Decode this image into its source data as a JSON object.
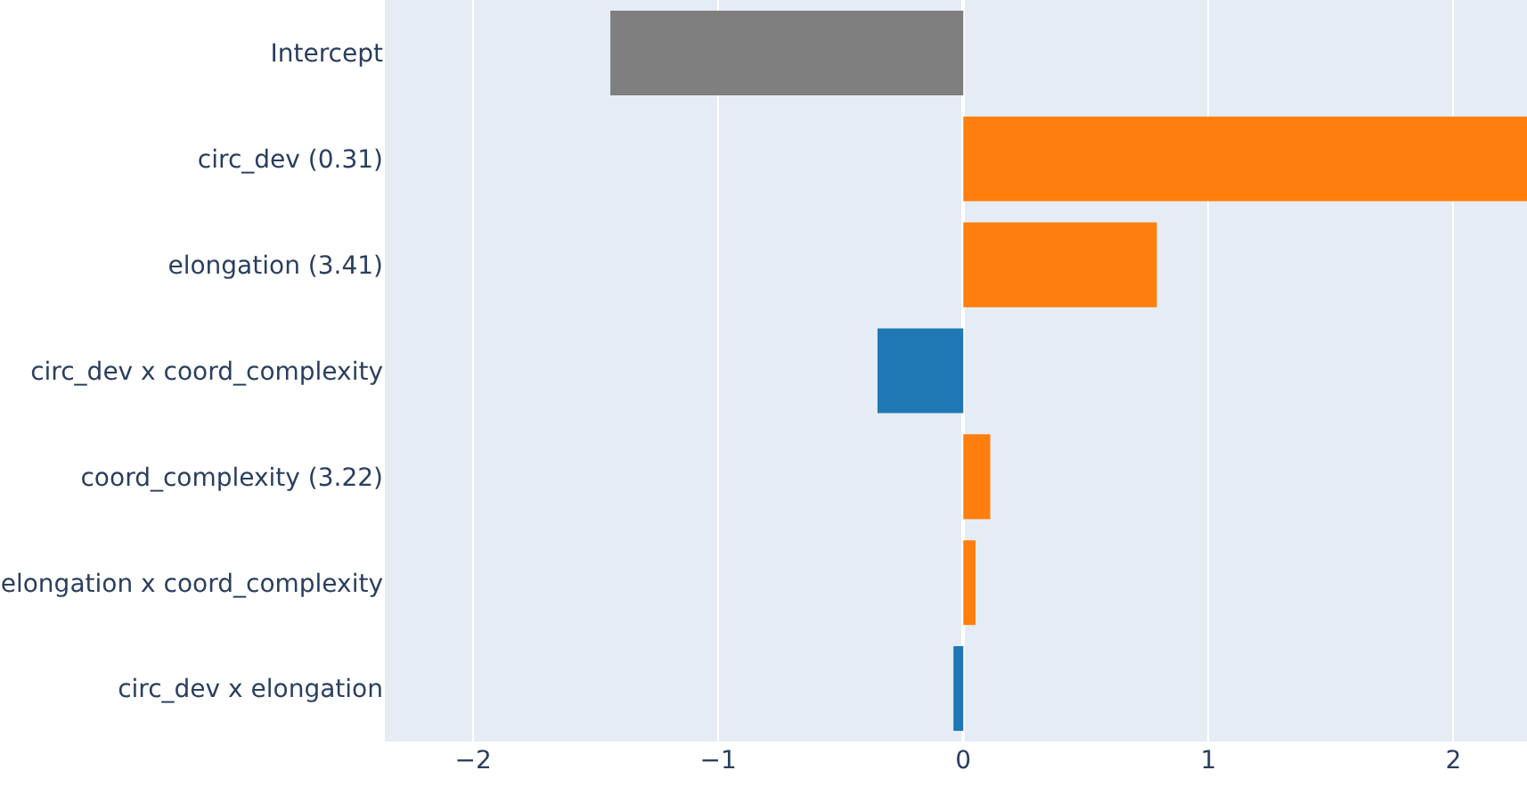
{
  "chart_data": {
    "type": "bar",
    "orientation": "horizontal",
    "categories": [
      "Intercept",
      "circ_dev (0.31)",
      "elongation (3.41)",
      "circ_dev x coord_complexity",
      "coord_complexity (3.22)",
      "elongation x coord_complexity",
      "circ_dev x elongation"
    ],
    "values": [
      -1.44,
      2.3,
      0.79,
      -0.35,
      0.11,
      0.05,
      -0.04
    ],
    "colors": [
      "#7f7f7f",
      "#ff7f0e",
      "#ff7f0e",
      "#1f77b4",
      "#ff7f0e",
      "#ff7f0e",
      "#1f77b4"
    ],
    "xlim": [
      -2.36,
      2.3
    ],
    "xticks": [
      {
        "value": -2,
        "label": "−2"
      },
      {
        "value": -1,
        "label": "−1"
      },
      0,
      1,
      2
    ],
    "grid": "x",
    "legend": false
  }
}
